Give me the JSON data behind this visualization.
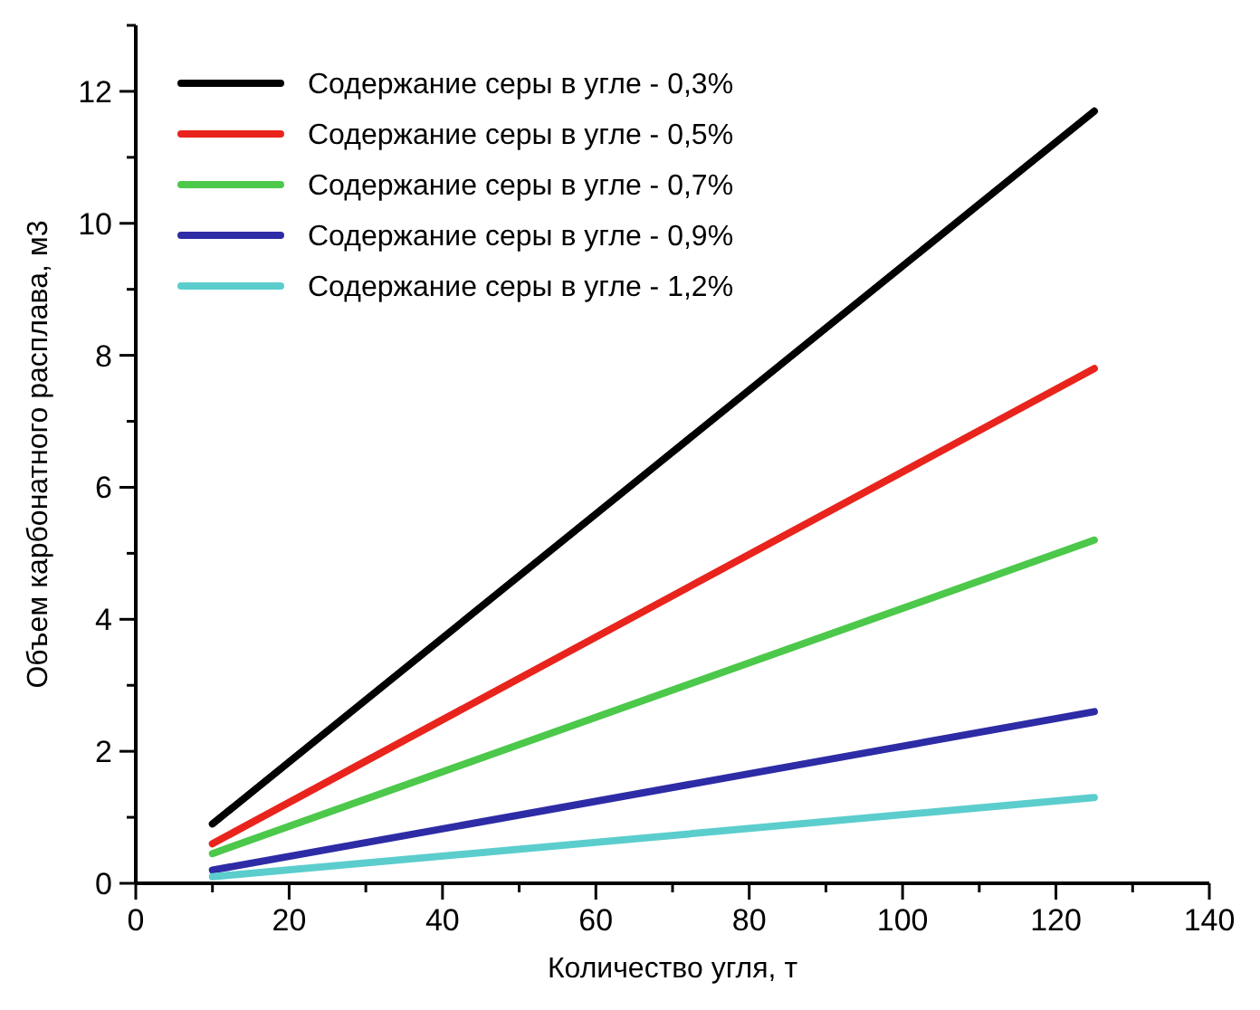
{
  "chart_data": {
    "type": "line",
    "xlabel": "Количество угля, т",
    "ylabel": "Объем карбонатного расплава, м3",
    "x": [
      10,
      125
    ],
    "series": [
      {
        "name": "Содержание серы в угле - 0,3%",
        "color": "#000000",
        "values": [
          0.9,
          11.7
        ]
      },
      {
        "name": "Содержание серы в угле - 0,5%",
        "color": "#e8241c",
        "values": [
          0.6,
          7.8
        ]
      },
      {
        "name": "Содержание серы в угле - 0,7%",
        "color": "#4cc84a",
        "values": [
          0.45,
          5.2
        ]
      },
      {
        "name": "Содержание серы в угле - 0,9%",
        "color": "#2e2ba6",
        "values": [
          0.2,
          2.6
        ]
      },
      {
        "name": "Содержание серы в угле - 1,2%",
        "color": "#5ccdcd",
        "values": [
          0.1,
          1.3
        ]
      }
    ],
    "xlim": [
      0,
      140
    ],
    "ylim": [
      0,
      13
    ],
    "xticks": [
      0,
      {
        "value": 10,
        "label": null
      },
      20,
      {
        "value": 30,
        "label": null
      },
      40,
      {
        "value": 50,
        "label": null
      },
      60,
      {
        "value": 70,
        "label": null
      },
      80,
      {
        "value": 90,
        "label": null
      },
      100,
      {
        "value": 110,
        "label": null
      },
      120,
      {
        "value": 130,
        "label": null
      },
      140
    ],
    "yticks": [
      0,
      {
        "value": 1,
        "label": null
      },
      2,
      {
        "value": 3,
        "label": null
      },
      4,
      {
        "value": 5,
        "label": null
      },
      6,
      {
        "value": 7,
        "label": null
      },
      8,
      {
        "value": 9,
        "label": null
      },
      10,
      {
        "value": 11,
        "label": null
      },
      12,
      {
        "value": 13,
        "label": null
      }
    ],
    "grid": false,
    "legend": "top left",
    "marker": "none",
    "line_style": "solid"
  }
}
